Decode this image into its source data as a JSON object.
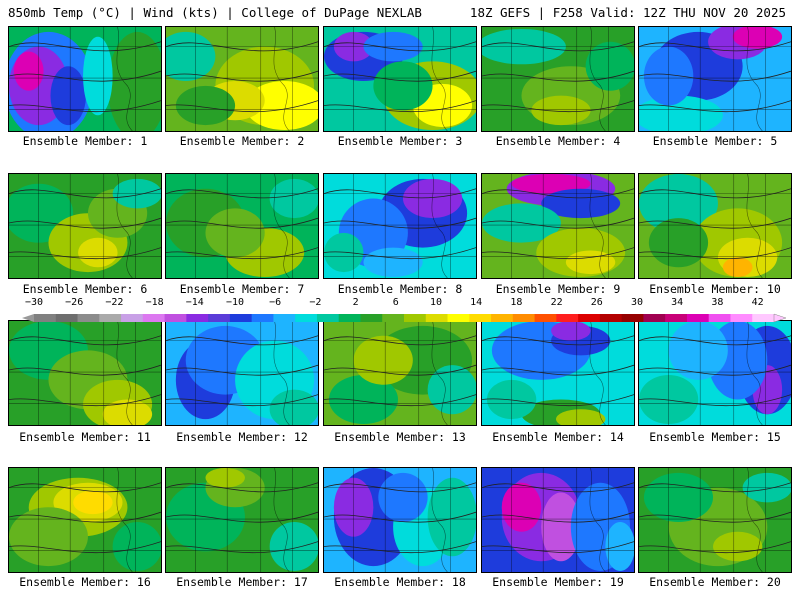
{
  "header": {
    "left": "850mb Temp (°C) | Wind (kts) | College of DuPage NEXLAB",
    "right": "18Z GEFS | F258 Valid: 12Z THU NOV 20 2025"
  },
  "colorbar": {
    "labels": [
      "−30",
      "−26",
      "−22",
      "−18",
      "−14",
      "−10",
      "−6",
      "−2",
      "2",
      "6",
      "10",
      "14",
      "18",
      "22",
      "26",
      "30",
      "34",
      "38",
      "42"
    ],
    "colors": [
      "#808080",
      "#6e6e6e",
      "#8c8c8c",
      "#aaaaaa",
      "#c8a0e6",
      "#dc78f0",
      "#c050e0",
      "#8a2be2",
      "#5a3cd8",
      "#1e3cdc",
      "#1e78ff",
      "#1eb4ff",
      "#00dcdc",
      "#00c8a0",
      "#00b45a",
      "#28a028",
      "#64b41e",
      "#a0c800",
      "#dcdc00",
      "#ffff00",
      "#ffdc00",
      "#ffb400",
      "#ff8c00",
      "#ff5000",
      "#ff1e1e",
      "#dc0000",
      "#b40000",
      "#960000",
      "#a00050",
      "#c80078",
      "#dc00b4",
      "#f050f0",
      "#ff8cff",
      "#ffc8ff"
    ]
  },
  "panels": [
    {
      "label": "Ensemble Member: 1",
      "base": "#00b45a",
      "blobs": [
        [
          "#1e78ff",
          40,
          60,
          45,
          55
        ],
        [
          "#8a2be2",
          30,
          60,
          30,
          40
        ],
        [
          "#dc00b4",
          20,
          45,
          15,
          20
        ],
        [
          "#1e3cdc",
          60,
          70,
          18,
          30
        ],
        [
          "#28a028",
          130,
          60,
          30,
          55
        ],
        [
          "#00dcdc",
          90,
          50,
          15,
          40
        ]
      ]
    },
    {
      "label": "Ensemble Member: 2",
      "base": "#64b41e",
      "blobs": [
        [
          "#00c8a0",
          20,
          30,
          30,
          25
        ],
        [
          "#a0c800",
          100,
          60,
          50,
          40
        ],
        [
          "#ffff00",
          120,
          80,
          40,
          25
        ],
        [
          "#dcdc00",
          70,
          75,
          30,
          20
        ],
        [
          "#28a028",
          40,
          80,
          30,
          20
        ]
      ]
    },
    {
      "label": "Ensemble Member: 3",
      "base": "#00c8a0",
      "blobs": [
        [
          "#1e3cdc",
          40,
          30,
          40,
          25
        ],
        [
          "#8a2be2",
          30,
          20,
          20,
          15
        ],
        [
          "#a0c800",
          110,
          70,
          50,
          35
        ],
        [
          "#ffff00",
          120,
          80,
          30,
          22
        ],
        [
          "#00b45a",
          80,
          60,
          30,
          25
        ],
        [
          "#1e78ff",
          70,
          20,
          30,
          15
        ]
      ]
    },
    {
      "label": "Ensemble Member: 4",
      "base": "#28a028",
      "blobs": [
        [
          "#00c8a0",
          40,
          20,
          45,
          18
        ],
        [
          "#64b41e",
          90,
          70,
          50,
          30
        ],
        [
          "#00b45a",
          130,
          40,
          25,
          25
        ],
        [
          "#a0c800",
          80,
          85,
          30,
          15
        ]
      ]
    },
    {
      "label": "Ensemble Member: 5",
      "base": "#1eb4ff",
      "blobs": [
        [
          "#1e3cdc",
          60,
          40,
          45,
          35
        ],
        [
          "#8a2be2",
          100,
          15,
          30,
          18
        ],
        [
          "#dc00b4",
          120,
          10,
          25,
          12
        ],
        [
          "#00dcdc",
          40,
          90,
          45,
          20
        ],
        [
          "#1e78ff",
          30,
          50,
          25,
          30
        ]
      ]
    },
    {
      "label": "Ensemble Member: 6",
      "base": "#28a028",
      "blobs": [
        [
          "#00b45a",
          30,
          40,
          35,
          30
        ],
        [
          "#a0c800",
          80,
          70,
          40,
          30
        ],
        [
          "#64b41e",
          110,
          40,
          30,
          25
        ],
        [
          "#00c8a0",
          130,
          20,
          25,
          15
        ],
        [
          "#dcdc00",
          90,
          80,
          20,
          15
        ]
      ]
    },
    {
      "label": "Ensemble Member: 7",
      "base": "#00b45a",
      "blobs": [
        [
          "#28a028",
          40,
          50,
          40,
          35
        ],
        [
          "#a0c800",
          100,
          80,
          40,
          25
        ],
        [
          "#64b41e",
          70,
          60,
          30,
          25
        ],
        [
          "#00c8a0",
          130,
          25,
          25,
          20
        ]
      ]
    },
    {
      "label": "Ensemble Member: 8",
      "base": "#00dcdc",
      "blobs": [
        [
          "#1e3cdc",
          100,
          40,
          45,
          35
        ],
        [
          "#8a2be2",
          110,
          25,
          30,
          20
        ],
        [
          "#1e78ff",
          50,
          60,
          35,
          35
        ],
        [
          "#00c8a0",
          20,
          80,
          20,
          20
        ],
        [
          "#1eb4ff",
          70,
          90,
          30,
          15
        ]
      ]
    },
    {
      "label": "Ensemble Member: 9",
      "base": "#64b41e",
      "blobs": [
        [
          "#8a2be2",
          80,
          15,
          55,
          18
        ],
        [
          "#dc00b4",
          70,
          10,
          40,
          10
        ],
        [
          "#1e3cdc",
          100,
          30,
          40,
          15
        ],
        [
          "#00c8a0",
          40,
          50,
          40,
          20
        ],
        [
          "#a0c800",
          100,
          80,
          45,
          25
        ],
        [
          "#dcdc00",
          110,
          90,
          25,
          12
        ]
      ]
    },
    {
      "label": "Ensemble Member: 10",
      "base": "#64b41e",
      "blobs": [
        [
          "#00c8a0",
          40,
          30,
          40,
          30
        ],
        [
          "#a0c800",
          100,
          70,
          45,
          35
        ],
        [
          "#dcdc00",
          110,
          85,
          30,
          20
        ],
        [
          "#ffb400",
          100,
          95,
          15,
          10
        ],
        [
          "#28a028",
          40,
          70,
          30,
          25
        ]
      ]
    },
    {
      "label": "Ensemble Member: 11",
      "base": "#28a028",
      "blobs": [
        [
          "#00b45a",
          40,
          30,
          40,
          30
        ],
        [
          "#64b41e",
          80,
          60,
          40,
          30
        ],
        [
          "#a0c800",
          110,
          85,
          35,
          25
        ],
        [
          "#dcdc00",
          120,
          95,
          25,
          15
        ]
      ]
    },
    {
      "label": "Ensemble Member: 12",
      "base": "#1eb4ff",
      "blobs": [
        [
          "#1e3cdc",
          40,
          60,
          30,
          40
        ],
        [
          "#1e78ff",
          60,
          40,
          40,
          35
        ],
        [
          "#00dcdc",
          110,
          60,
          40,
          40
        ],
        [
          "#00c8a0",
          130,
          90,
          25,
          20
        ]
      ]
    },
    {
      "label": "Ensemble Member: 13",
      "base": "#64b41e",
      "blobs": [
        [
          "#28a028",
          100,
          40,
          50,
          35
        ],
        [
          "#00b45a",
          40,
          80,
          35,
          25
        ],
        [
          "#a0c800",
          60,
          40,
          30,
          25
        ],
        [
          "#00c8a0",
          130,
          70,
          25,
          25
        ]
      ]
    },
    {
      "label": "Ensemble Member: 14",
      "base": "#00dcdc",
      "blobs": [
        [
          "#1e78ff",
          60,
          30,
          50,
          30
        ],
        [
          "#1e3cdc",
          100,
          20,
          30,
          15
        ],
        [
          "#8a2be2",
          90,
          10,
          20,
          10
        ],
        [
          "#28a028",
          80,
          95,
          40,
          15
        ],
        [
          "#a0c800",
          100,
          100,
          25,
          10
        ],
        [
          "#00c8a0",
          30,
          80,
          25,
          20
        ]
      ]
    },
    {
      "label": "Ensemble Member: 15",
      "base": "#00dcdc",
      "blobs": [
        [
          "#1e3cdc",
          130,
          50,
          30,
          45
        ],
        [
          "#8a2be2",
          130,
          70,
          15,
          25
        ],
        [
          "#1e78ff",
          100,
          40,
          30,
          40
        ],
        [
          "#1eb4ff",
          60,
          30,
          30,
          30
        ],
        [
          "#00c8a0",
          30,
          80,
          30,
          25
        ]
      ]
    },
    {
      "label": "Ensemble Member: 16",
      "base": "#28a028",
      "blobs": [
        [
          "#a0c800",
          70,
          40,
          50,
          30
        ],
        [
          "#dcdc00",
          80,
          35,
          35,
          20
        ],
        [
          "#ffdc00",
          85,
          35,
          20,
          12
        ],
        [
          "#64b41e",
          40,
          70,
          40,
          30
        ],
        [
          "#00b45a",
          130,
          80,
          25,
          25
        ]
      ]
    },
    {
      "label": "Ensemble Member: 17",
      "base": "#28a028",
      "blobs": [
        [
          "#00b45a",
          40,
          50,
          40,
          35
        ],
        [
          "#64b41e",
          70,
          20,
          30,
          20
        ],
        [
          "#a0c800",
          60,
          10,
          20,
          10
        ],
        [
          "#00c8a0",
          130,
          80,
          25,
          25
        ]
      ]
    },
    {
      "label": "Ensemble Member: 18",
      "base": "#1eb4ff",
      "blobs": [
        [
          "#1e3cdc",
          50,
          50,
          40,
          50
        ],
        [
          "#8a2be2",
          30,
          40,
          20,
          30
        ],
        [
          "#00dcdc",
          100,
          60,
          30,
          40
        ],
        [
          "#00c8a0",
          130,
          50,
          25,
          40
        ],
        [
          "#1e78ff",
          80,
          30,
          25,
          25
        ]
      ]
    },
    {
      "label": "Ensemble Member: 19",
      "base": "#1e3cdc",
      "blobs": [
        [
          "#8a2be2",
          60,
          50,
          40,
          45
        ],
        [
          "#dc00b4",
          40,
          40,
          20,
          25
        ],
        [
          "#c050e0",
          80,
          60,
          20,
          35
        ],
        [
          "#1e78ff",
          120,
          60,
          30,
          45
        ],
        [
          "#1eb4ff",
          140,
          80,
          15,
          25
        ]
      ]
    },
    {
      "label": "Ensemble Member: 20",
      "base": "#28a028",
      "blobs": [
        [
          "#64b41e",
          80,
          60,
          50,
          40
        ],
        [
          "#00b45a",
          40,
          30,
          35,
          25
        ],
        [
          "#a0c800",
          100,
          80,
          25,
          15
        ],
        [
          "#00c8a0",
          130,
          20,
          25,
          15
        ]
      ]
    }
  ]
}
